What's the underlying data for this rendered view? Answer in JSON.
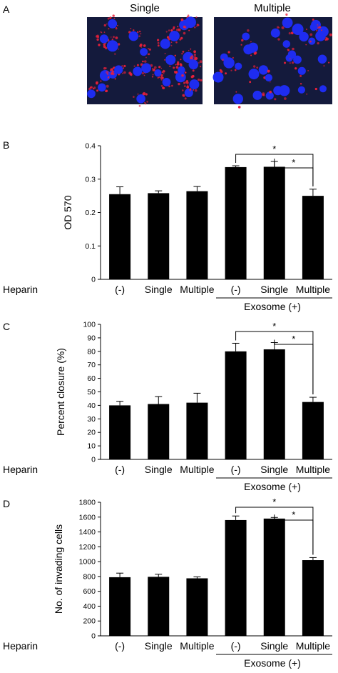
{
  "panels": {
    "a": {
      "letter": "A",
      "images": [
        {
          "label": "Single"
        },
        {
          "label": "Multiple"
        }
      ]
    },
    "b": {
      "letter": "B"
    },
    "c": {
      "letter": "C"
    },
    "d": {
      "letter": "D"
    }
  },
  "row_labels": {
    "heparin": "Heparin",
    "categories": [
      "(-)",
      "Single",
      "Multiple",
      "(-)",
      "Single",
      "Multiple"
    ],
    "group_label": "Exosome (+)"
  },
  "colors": {
    "bar": "#000000",
    "cell_bg": "#141a3c",
    "nucleus": "#1e2cf0",
    "stain": "#e8203a"
  },
  "chart_data": [
    {
      "type": "bar",
      "ylabel": "OD 570",
      "ylim": [
        0,
        0.4
      ],
      "yticks": [
        0,
        0.1,
        0.2,
        0.3,
        0.4
      ],
      "categories": [
        "(-)",
        "Single",
        "Multiple",
        "(-)",
        "Single",
        "Multiple"
      ],
      "values": [
        0.255,
        0.258,
        0.264,
        0.336,
        0.337,
        0.25
      ],
      "errors": [
        0.022,
        0.007,
        0.014,
        0.004,
        0.016,
        0.02
      ],
      "significance": [
        {
          "from": 3,
          "to": 5,
          "label": "*"
        },
        {
          "from": 4,
          "to": 5,
          "label": "*"
        }
      ]
    },
    {
      "type": "bar",
      "ylabel": "Percent closure (%)",
      "ylim": [
        0,
        100
      ],
      "yticks": [
        0,
        10,
        20,
        30,
        40,
        50,
        60,
        70,
        80,
        90,
        100
      ],
      "categories": [
        "(-)",
        "Single",
        "Multiple",
        "(-)",
        "Single",
        "Multiple"
      ],
      "values": [
        40,
        41,
        42,
        80,
        81.5,
        42.5
      ],
      "errors": [
        3,
        5.5,
        7,
        6,
        5,
        3.5
      ],
      "significance": [
        {
          "from": 3,
          "to": 5,
          "label": "*"
        },
        {
          "from": 4,
          "to": 5,
          "label": "*"
        }
      ]
    },
    {
      "type": "bar",
      "ylabel": "No. of invading cells",
      "ylim": [
        0,
        1800
      ],
      "yticks": [
        0,
        200,
        400,
        600,
        800,
        1000,
        1200,
        1400,
        1600,
        1800
      ],
      "categories": [
        "(-)",
        "Single",
        "Multiple",
        "(-)",
        "Single",
        "Multiple"
      ],
      "values": [
        790,
        795,
        775,
        1560,
        1580,
        1020
      ],
      "errors": [
        55,
        35,
        20,
        55,
        15,
        35
      ],
      "significance": [
        {
          "from": 3,
          "to": 5,
          "label": "*"
        },
        {
          "from": 4,
          "to": 5,
          "label": "*"
        }
      ]
    }
  ]
}
